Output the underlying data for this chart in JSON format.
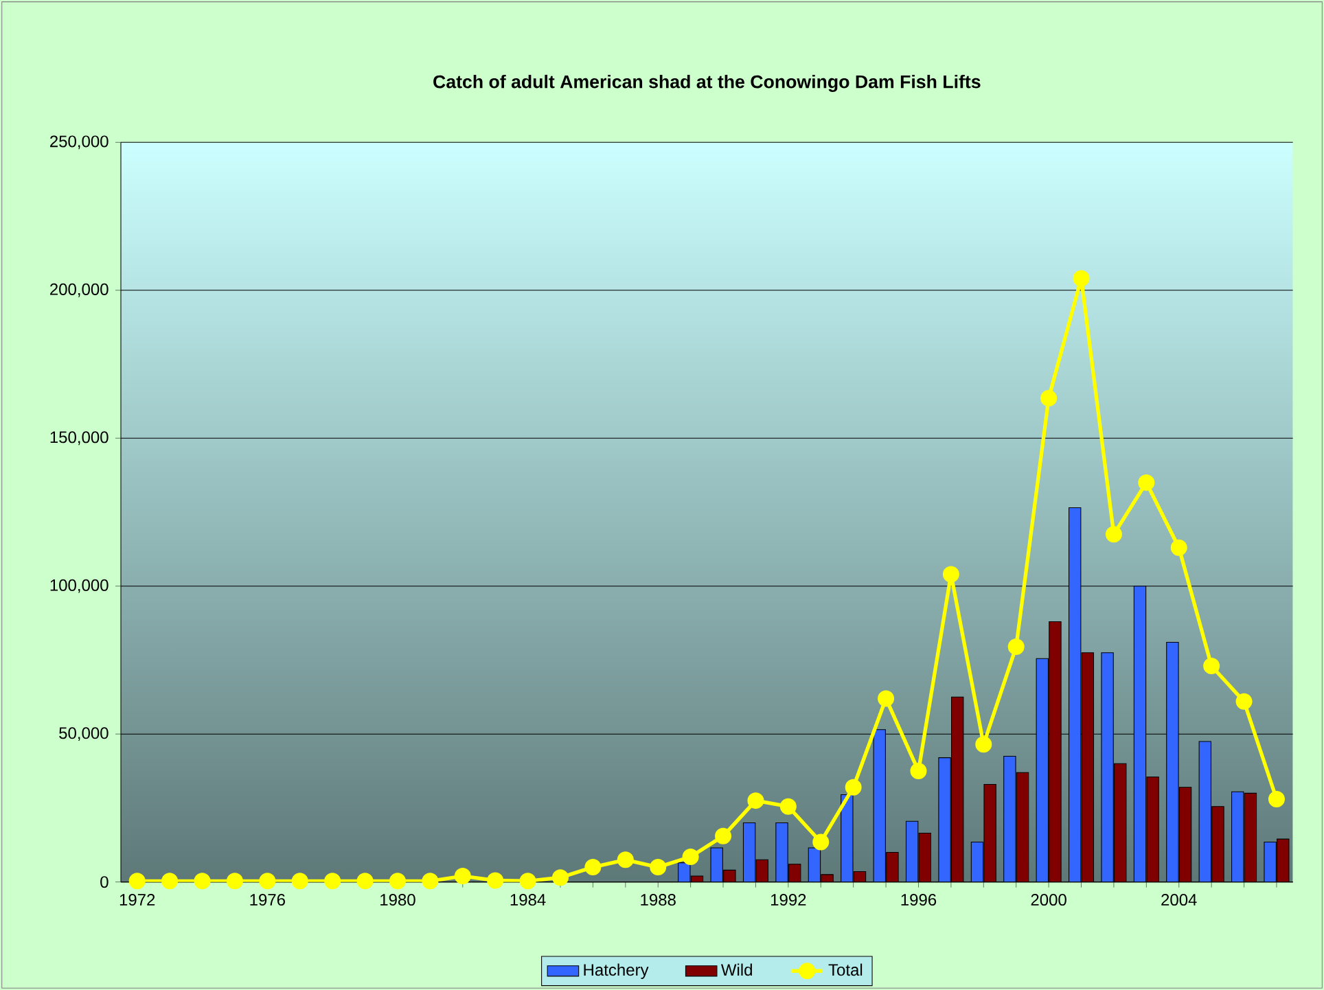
{
  "chart_data": {
    "type": "bar",
    "title": "Catch of adult American shad at the Conowingo Dam Fish Lifts",
    "categories": [
      "1972",
      null,
      null,
      null,
      "1976",
      null,
      null,
      null,
      "1980",
      null,
      null,
      null,
      "1984",
      null,
      null,
      null,
      "1988",
      null,
      null,
      null,
      "1992",
      null,
      null,
      null,
      "1996",
      null,
      null,
      null,
      "2000",
      null,
      null,
      null,
      "2004",
      null,
      null,
      null
    ],
    "series": [
      {
        "name": "Hatchery",
        "color": "#3366ff",
        "values": [
          null,
          null,
          null,
          null,
          null,
          null,
          null,
          null,
          null,
          null,
          null,
          null,
          null,
          null,
          null,
          null,
          null,
          6500,
          11500,
          20000,
          20000,
          11500,
          29500,
          51500,
          20500,
          42000,
          13500,
          42500,
          75500,
          126500,
          77500,
          100000,
          81000,
          47500,
          30500,
          13500
        ]
      },
      {
        "name": "Wild",
        "color": "#800000",
        "values": [
          null,
          null,
          null,
          null,
          null,
          null,
          null,
          null,
          null,
          null,
          null,
          null,
          null,
          null,
          null,
          null,
          null,
          2000,
          4000,
          7500,
          6000,
          2500,
          3500,
          10000,
          16500,
          62500,
          33000,
          37000,
          88000,
          77500,
          40000,
          35500,
          32000,
          25500,
          30000,
          14500
        ]
      },
      {
        "name": "Total",
        "type": "line",
        "color": "#ffff00",
        "marker": "circle",
        "values": [
          300,
          300,
          300,
          300,
          300,
          300,
          300,
          300,
          300,
          300,
          2000,
          500,
          300,
          1500,
          5000,
          7500,
          5000,
          8500,
          15500,
          27500,
          25500,
          13500,
          32000,
          62000,
          37500,
          104000,
          46500,
          79500,
          163500,
          204000,
          117500,
          135000,
          113000,
          73000,
          61000,
          28000
        ]
      }
    ],
    "ylim": [
      0,
      250000
    ],
    "yticks": [
      {
        "value": 0,
        "label": "0"
      },
      {
        "value": 50000,
        "label": "50,000"
      },
      {
        "value": 100000,
        "label": "100,000"
      },
      {
        "value": 150000,
        "label": "150,000"
      },
      {
        "value": 200000,
        "label": "200,000"
      },
      {
        "value": 250000,
        "label": "250,000"
      }
    ],
    "grid": "y",
    "legend": "bottom"
  }
}
